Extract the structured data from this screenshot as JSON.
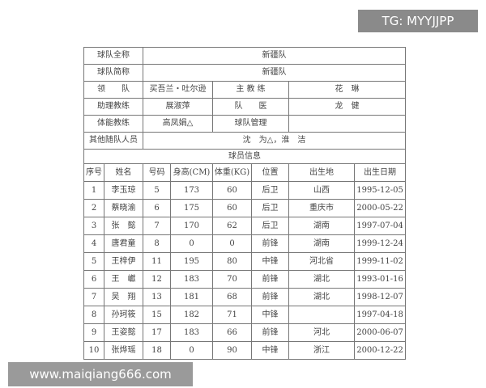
{
  "watermarks": {
    "top": "TG: MYYJJPP",
    "bottom": "www.maiqiang666.com"
  },
  "team": {
    "full_name_label": "球队全称",
    "full_name": "新疆队",
    "short_name_label": "球队简称",
    "short_name": "新疆队",
    "leader_label": "领　　队",
    "leader": "买吾兰・吐尔逊",
    "head_coach_label": "主 教 练",
    "head_coach": "花　琳",
    "assistant_label": "助理教练",
    "assistant": "展淑萍",
    "doctor_label": "队　　医",
    "doctor": "龙　健",
    "fitness_label": "体能教练",
    "fitness": "高凤娟△",
    "manager_label": "球队管理",
    "manager": "",
    "others_label": "其他随队人员",
    "others": "沈　为△，淮　洁"
  },
  "players_title": "球员信息",
  "columns": [
    "序号",
    "姓名",
    "号码",
    "身高(CM)",
    "体重(KG)",
    "位置",
    "出生地",
    "出生日期"
  ],
  "players": [
    [
      "1",
      "李玉琼",
      "5",
      "173",
      "60",
      "后卫",
      "山西",
      "1995-12-05"
    ],
    [
      "2",
      "蔡晓渝",
      "6",
      "175",
      "60",
      "后卫",
      "重庆市",
      "2000-05-22"
    ],
    [
      "3",
      "张　懿",
      "7",
      "170",
      "62",
      "后卫",
      "湖南",
      "1997-07-04"
    ],
    [
      "4",
      "唐君童",
      "8",
      "0",
      "0",
      "前锋",
      "湖南",
      "1999-12-24"
    ],
    [
      "5",
      "王梓伊",
      "11",
      "195",
      "80",
      "中锋",
      "河北省",
      "1999-11-02"
    ],
    [
      "6",
      "王　巘",
      "12",
      "183",
      "70",
      "前锋",
      "湖北",
      "1993-01-16"
    ],
    [
      "7",
      "吴　翔",
      "13",
      "181",
      "68",
      "前锋",
      "湖北",
      "1998-12-07"
    ],
    [
      "8",
      "孙珂筱",
      "15",
      "182",
      "71",
      "中锋",
      "",
      "1997-04-18"
    ],
    [
      "9",
      "王姿懿",
      "17",
      "183",
      "66",
      "前锋",
      "河北",
      "2000-06-07"
    ],
    [
      "10",
      "张烨瑶",
      "18",
      "0",
      "90",
      "中锋",
      "浙江",
      "2000-12-22"
    ]
  ]
}
